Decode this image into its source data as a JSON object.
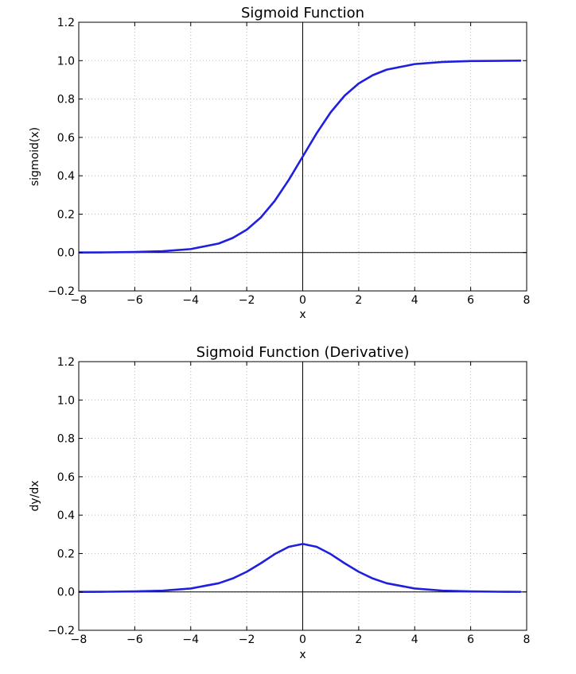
{
  "chart_data": [
    {
      "type": "line",
      "title": "Sigmoid Function",
      "xlabel": "x",
      "ylabel": "sigmoid(x)",
      "xlim": [
        -8,
        8
      ],
      "ylim": [
        -0.2,
        1.2
      ],
      "xticks": [
        -8,
        -6,
        -4,
        -2,
        0,
        2,
        4,
        6,
        8
      ],
      "xtick_labels": [
        "−8",
        "−6",
        "−4",
        "−2",
        "0",
        "2",
        "4",
        "6",
        "8"
      ],
      "yticks": [
        -0.2,
        0.0,
        0.2,
        0.4,
        0.6,
        0.8,
        1.0,
        1.2
      ],
      "ytick_labels": [
        "−0.2",
        "0.0",
        "0.2",
        "0.4",
        "0.6",
        "0.8",
        "1.0",
        "1.2"
      ],
      "grid": true,
      "zero_lines": true,
      "series": [
        {
          "color": "#1f1fdf",
          "x": [
            -8,
            -7,
            -6,
            -5,
            -4,
            -3,
            -2.5,
            -2,
            -1.5,
            -1,
            -0.5,
            0,
            0.5,
            1,
            1.5,
            2,
            2.5,
            3,
            4,
            5,
            6,
            7,
            7.8
          ],
          "y": [
            0.0003,
            0.0009,
            0.0025,
            0.0067,
            0.018,
            0.047,
            0.076,
            0.119,
            0.182,
            0.269,
            0.378,
            0.5,
            0.622,
            0.731,
            0.818,
            0.881,
            0.924,
            0.953,
            0.982,
            0.993,
            0.998,
            0.999,
            1.0
          ]
        }
      ]
    },
    {
      "type": "line",
      "title": "Sigmoid Function (Derivative)",
      "xlabel": "x",
      "ylabel": "dy/dx",
      "xlim": [
        -8,
        8
      ],
      "ylim": [
        -0.2,
        1.2
      ],
      "xticks": [
        -8,
        -6,
        -4,
        -2,
        0,
        2,
        4,
        6,
        8
      ],
      "xtick_labels": [
        "−8",
        "−6",
        "−4",
        "−2",
        "0",
        "2",
        "4",
        "6",
        "8"
      ],
      "yticks": [
        -0.2,
        0.0,
        0.2,
        0.4,
        0.6,
        0.8,
        1.0,
        1.2
      ],
      "ytick_labels": [
        "−0.2",
        "0.0",
        "0.2",
        "0.4",
        "0.6",
        "0.8",
        "1.0",
        "1.2"
      ],
      "grid": true,
      "zero_lines": true,
      "series": [
        {
          "color": "#1f1fdf",
          "x": [
            -8,
            -7,
            -6,
            -5,
            -4,
            -3,
            -2.5,
            -2,
            -1.5,
            -1,
            -0.5,
            0,
            0.5,
            1,
            1.5,
            2,
            2.5,
            3,
            4,
            5,
            6,
            7,
            7.8
          ],
          "y": [
            0.0003,
            0.0009,
            0.0025,
            0.0066,
            0.0177,
            0.0452,
            0.0701,
            0.105,
            0.149,
            0.197,
            0.235,
            0.25,
            0.235,
            0.197,
            0.149,
            0.105,
            0.0701,
            0.0452,
            0.0177,
            0.0066,
            0.0025,
            0.0009,
            0.0004
          ]
        }
      ]
    }
  ]
}
